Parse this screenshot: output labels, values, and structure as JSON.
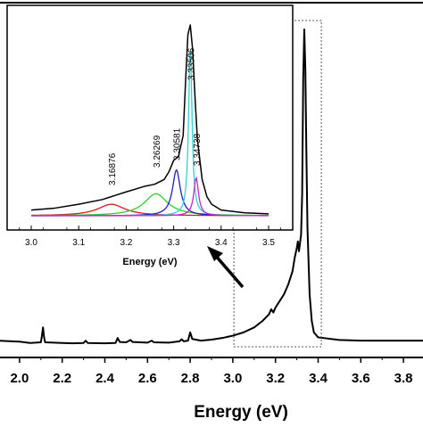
{
  "chart_data": [
    {
      "type": "line",
      "xlabel": "Energy (eV)",
      "ylabel": "",
      "xlim": [
        1.9,
        3.9
      ],
      "x_ticks": [
        "2.0",
        "2.2",
        "2.4",
        "2.6",
        "2.8",
        "3.0",
        "3.2",
        "3.4",
        "3.6",
        "3.8"
      ],
      "grid": false,
      "series": [
        {
          "color": "#000000",
          "points": [
            [
              1.9,
              0.06
            ],
            [
              2.0,
              0.057
            ],
            [
              2.05,
              0.053
            ],
            [
              2.1,
              0.055
            ],
            [
              2.105,
              0.075
            ],
            [
              2.11,
              0.1
            ],
            [
              2.115,
              0.07
            ],
            [
              2.12,
              0.055
            ],
            [
              2.2,
              0.053
            ],
            [
              2.25,
              0.052
            ],
            [
              2.3,
              0.053
            ],
            [
              2.31,
              0.06
            ],
            [
              2.32,
              0.053
            ],
            [
              2.4,
              0.052
            ],
            [
              2.45,
              0.053
            ],
            [
              2.46,
              0.068
            ],
            [
              2.47,
              0.056
            ],
            [
              2.5,
              0.055
            ],
            [
              2.52,
              0.062
            ],
            [
              2.53,
              0.056
            ],
            [
              2.6,
              0.054
            ],
            [
              2.62,
              0.06
            ],
            [
              2.63,
              0.055
            ],
            [
              2.7,
              0.054
            ],
            [
              2.75,
              0.058
            ],
            [
              2.76,
              0.064
            ],
            [
              2.77,
              0.058
            ],
            [
              2.79,
              0.06
            ],
            [
              2.8,
              0.085
            ],
            [
              2.81,
              0.065
            ],
            [
              2.85,
              0.06
            ],
            [
              2.9,
              0.063
            ],
            [
              2.95,
              0.068
            ],
            [
              3.0,
              0.075
            ],
            [
              3.05,
              0.085
            ],
            [
              3.1,
              0.1
            ],
            [
              3.14,
              0.12
            ],
            [
              3.17,
              0.14
            ],
            [
              3.18,
              0.155
            ],
            [
              3.19,
              0.145
            ],
            [
              3.2,
              0.16
            ],
            [
              3.22,
              0.18
            ],
            [
              3.24,
              0.2
            ],
            [
              3.26,
              0.23
            ],
            [
              3.28,
              0.27
            ],
            [
              3.29,
              0.31
            ],
            [
              3.3,
              0.34
            ],
            [
              3.305,
              0.36
            ],
            [
              3.31,
              0.33
            ],
            [
              3.32,
              0.38
            ],
            [
              3.325,
              0.5
            ],
            [
              3.33,
              0.85
            ],
            [
              3.335,
              1.0
            ],
            [
              3.34,
              0.88
            ],
            [
              3.345,
              0.62
            ],
            [
              3.35,
              0.4
            ],
            [
              3.36,
              0.2
            ],
            [
              3.37,
              0.12
            ],
            [
              3.38,
              0.085
            ],
            [
              3.4,
              0.07
            ],
            [
              3.5,
              0.062
            ],
            [
              3.6,
              0.06
            ],
            [
              3.7,
              0.06
            ],
            [
              3.8,
              0.06
            ],
            [
              3.9,
              0.06
            ]
          ]
        }
      ]
    },
    {
      "type": "line",
      "xlabel": "Energy (eV)",
      "ylabel": "",
      "xlim": [
        2.975,
        3.525
      ],
      "x_ticks": [
        "3.0",
        "3.1",
        "3.2",
        "3.3",
        "3.4",
        "3.5"
      ],
      "grid": false,
      "annotations": [
        "3.16876",
        "3.26269",
        "3.30581",
        "3.33506",
        "3.34738"
      ],
      "annotation_x": [
        3.16876,
        3.26269,
        3.30581,
        3.33506,
        3.34738
      ],
      "series": [
        {
          "color": "#000000",
          "points": [
            [
              3.0,
              0.03
            ],
            [
              3.05,
              0.04
            ],
            [
              3.1,
              0.06
            ],
            [
              3.15,
              0.085
            ],
            [
              3.2,
              0.125
            ],
            [
              3.22,
              0.14
            ],
            [
              3.24,
              0.155
            ],
            [
              3.26,
              0.165
            ],
            [
              3.28,
              0.19
            ],
            [
              3.29,
              0.23
            ],
            [
              3.3,
              0.29
            ],
            [
              3.31,
              0.31
            ],
            [
              3.32,
              0.42
            ],
            [
              3.325,
              0.7
            ],
            [
              3.33,
              0.95
            ],
            [
              3.335,
              1.0
            ],
            [
              3.34,
              0.87
            ],
            [
              3.345,
              0.62
            ],
            [
              3.35,
              0.4
            ],
            [
              3.36,
              0.19
            ],
            [
              3.37,
              0.1
            ],
            [
              3.38,
              0.06
            ],
            [
              3.4,
              0.03
            ],
            [
              3.45,
              0.015
            ],
            [
              3.5,
              0.01
            ]
          ]
        },
        {
          "color": "#d81b1b",
          "center": 3.16876,
          "amplitude": 0.06,
          "width": 0.07
        },
        {
          "color": "#2ecc2e",
          "center": 3.26269,
          "amplitude": 0.115,
          "width": 0.06
        },
        {
          "color": "#1f1fbf",
          "center": 3.30581,
          "amplitude": 0.24,
          "width": 0.02
        },
        {
          "color": "#2fd3d3",
          "center": 3.33506,
          "amplitude": 0.9,
          "width": 0.0085
        },
        {
          "color": "#cc22cc",
          "center": 3.34738,
          "amplitude": 0.2,
          "width": 0.012
        }
      ]
    }
  ]
}
